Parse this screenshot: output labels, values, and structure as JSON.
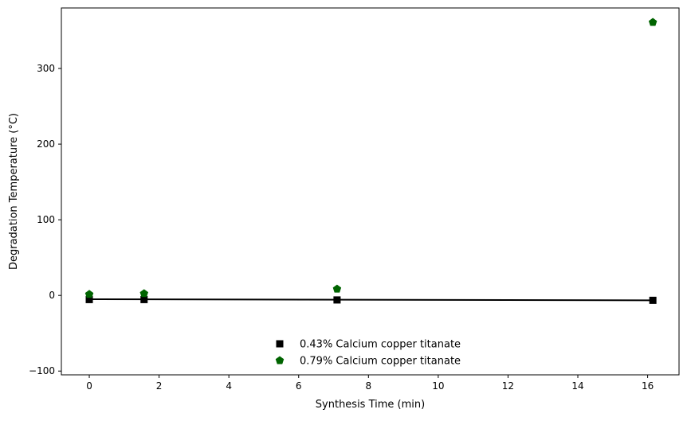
{
  "chart_data": {
    "type": "scatter",
    "title": "",
    "xlabel": "Synthesis Time (min)",
    "ylabel": "Degradation Temperature (°C)",
    "xlim": [
      -0.8,
      16.9
    ],
    "ylim": [
      -105,
      380
    ],
    "x_ticks": [
      0,
      2,
      4,
      6,
      8,
      10,
      12,
      14,
      16
    ],
    "x_tick_labels": [
      "0",
      "2",
      "4",
      "6",
      "8",
      "10",
      "12",
      "14",
      "16"
    ],
    "y_ticks": [
      -100,
      0,
      100,
      200,
      300
    ],
    "y_tick_labels": [
      "−100",
      "0",
      "100",
      "200",
      "300"
    ],
    "grid": false,
    "legend_position": "lower-center",
    "series": [
      {
        "name": "0.43% Calcium copper titanate",
        "marker": "square",
        "color": "#000000",
        "x": [
          0,
          1.57,
          7.1,
          16.15
        ],
        "y": [
          -5.5,
          -5.5,
          -6,
          -6.5
        ],
        "fit_line": {
          "x": [
            0,
            16.15
          ],
          "y": [
            -5,
            -6.5
          ],
          "color": "#000000"
        }
      },
      {
        "name": "0.79% Calcium copper titanate",
        "marker": "pentagon",
        "color": "#006400",
        "x": [
          0,
          1.57,
          7.1,
          16.15
        ],
        "y": [
          1.5,
          2.5,
          8.5,
          361
        ]
      }
    ]
  }
}
